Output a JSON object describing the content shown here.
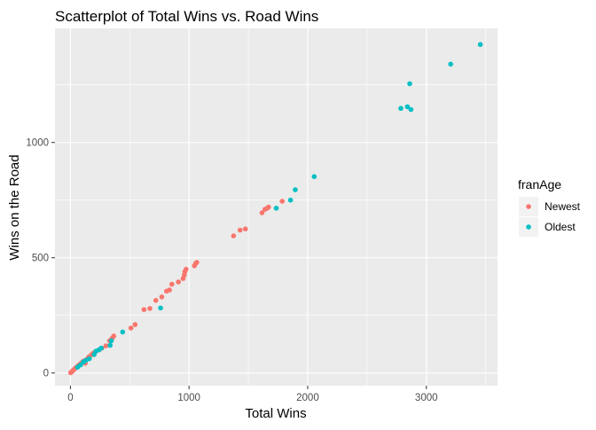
{
  "chart_data": {
    "type": "scatter",
    "title": "Scatterplot of Total Wins vs. Road Wins",
    "xlabel": "Total Wins",
    "ylabel": "Wins on the Road",
    "xlim": [
      -130,
      3600
    ],
    "ylim": [
      -55,
      1495
    ],
    "x_ticks": [
      0,
      1000,
      2000,
      3000
    ],
    "x_tick_labels": [
      "0",
      "1000",
      "2000",
      "3000"
    ],
    "y_ticks": [
      0,
      500,
      1000
    ],
    "y_tick_labels": [
      "0",
      "500",
      "1000"
    ],
    "grid": true,
    "background": "#ebebeb",
    "legend": {
      "title": "franAge",
      "placement": "right",
      "entries": [
        {
          "label": "Newest",
          "color": "#f8766d"
        },
        {
          "label": "Oldest",
          "color": "#00bfc4"
        }
      ]
    },
    "series": [
      {
        "name": "Newest",
        "color": "#f8766d",
        "points": [
          [
            2,
            1
          ],
          [
            8,
            4
          ],
          [
            15,
            7
          ],
          [
            20,
            10
          ],
          [
            28,
            14
          ],
          [
            35,
            18
          ],
          [
            45,
            22
          ],
          [
            55,
            27
          ],
          [
            65,
            32
          ],
          [
            80,
            38
          ],
          [
            95,
            45
          ],
          [
            110,
            52
          ],
          [
            125,
            42
          ],
          [
            140,
            60
          ],
          [
            155,
            70
          ],
          [
            175,
            78
          ],
          [
            190,
            85
          ],
          [
            210,
            92
          ],
          [
            240,
            100
          ],
          [
            265,
            108
          ],
          [
            300,
            118
          ],
          [
            330,
            140
          ],
          [
            350,
            150
          ],
          [
            365,
            160
          ],
          [
            510,
            195
          ],
          [
            545,
            210
          ],
          [
            620,
            275
          ],
          [
            670,
            280
          ],
          [
            720,
            315
          ],
          [
            770,
            330
          ],
          [
            810,
            355
          ],
          [
            835,
            360
          ],
          [
            855,
            385
          ],
          [
            910,
            395
          ],
          [
            950,
            410
          ],
          [
            965,
            440
          ],
          [
            960,
            425
          ],
          [
            975,
            450
          ],
          [
            1045,
            465
          ],
          [
            1055,
            475
          ],
          [
            1065,
            480
          ],
          [
            1375,
            595
          ],
          [
            1430,
            620
          ],
          [
            1475,
            625
          ],
          [
            1615,
            695
          ],
          [
            1640,
            710
          ],
          [
            1660,
            715
          ],
          [
            1670,
            720
          ],
          [
            1785,
            745
          ]
        ]
      },
      {
        "name": "Oldest",
        "color": "#00bfc4",
        "points": [
          [
            60,
            25
          ],
          [
            85,
            35
          ],
          [
            110,
            48
          ],
          [
            130,
            55
          ],
          [
            160,
            62
          ],
          [
            200,
            80
          ],
          [
            215,
            95
          ],
          [
            240,
            100
          ],
          [
            260,
            108
          ],
          [
            335,
            120
          ],
          [
            345,
            140
          ],
          [
            440,
            178
          ],
          [
            760,
            282
          ],
          [
            1735,
            715
          ],
          [
            1855,
            750
          ],
          [
            1895,
            795
          ],
          [
            2055,
            852
          ],
          [
            2785,
            1148
          ],
          [
            2840,
            1155
          ],
          [
            2870,
            1143
          ],
          [
            2860,
            1255
          ],
          [
            3205,
            1340
          ],
          [
            3455,
            1425
          ]
        ]
      }
    ]
  }
}
